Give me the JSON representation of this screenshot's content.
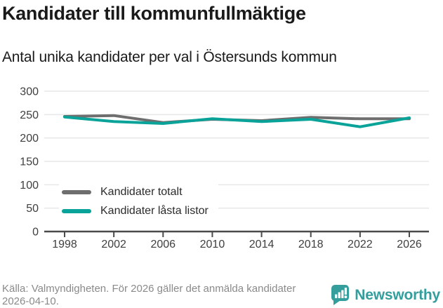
{
  "title": "Kandidater till kommunfullmäktige",
  "subtitle": "Antal unika kandidater per val i Östersunds kommun",
  "footer": {
    "source": "Källa: Valmyndigheten. För 2026 gäller det anmälda kandidater 2026-04-10.",
    "brand": "Newsworthy"
  },
  "colors": {
    "series_total": "#6e6e6e",
    "series_locked": "#0aa399",
    "grid": "#e7e7e7",
    "axis": "#4a4a4a",
    "tick_label": "#3f3f3f",
    "text": "#1a1a1a",
    "muted": "#8a8a8a",
    "brand_teal": "#349e9d"
  },
  "chart_data": {
    "type": "line",
    "x": [
      1998,
      2002,
      2006,
      2010,
      2014,
      2018,
      2022,
      2026
    ],
    "series": [
      {
        "name": "Kandidater totalt",
        "color": "#6e6e6e",
        "values": [
          246,
          248,
          233,
          240,
          237,
          244,
          241,
          241
        ]
      },
      {
        "name": "Kandidater låsta listor",
        "color": "#0aa399",
        "values": [
          245,
          235,
          231,
          241,
          235,
          240,
          224,
          243
        ]
      }
    ],
    "xlabel": "",
    "ylabel": "",
    "ylim": [
      0,
      300
    ],
    "yticks": [
      0,
      50,
      100,
      150,
      200,
      250,
      300
    ],
    "grid": true,
    "legend_position": "inside-bottom-left"
  }
}
